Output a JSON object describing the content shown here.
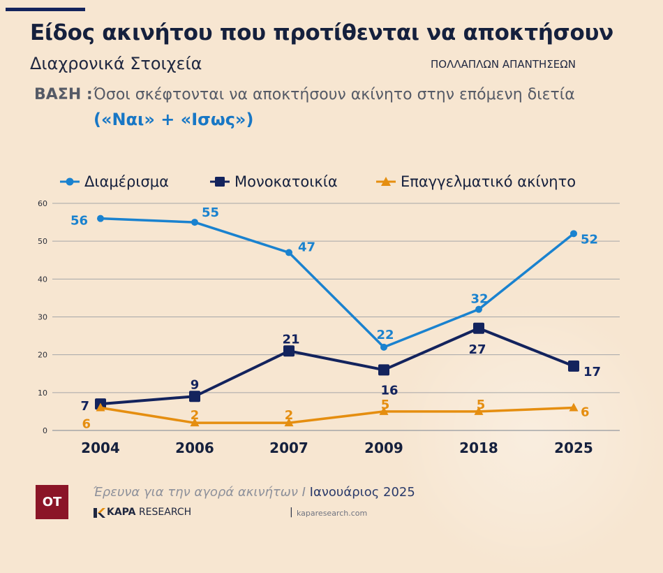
{
  "header": {
    "title": "Είδος ακινήτου που προτίθενται να αποκτήσουν",
    "subtitle": "Διαχρονικά Στοιχεία",
    "note": "ΠΟΛΛΑΠΛΩΝ ΑΠΑΝΤΗΣΕΩΝ",
    "base_label": "ΒΑΣΗ :",
    "base_text": "Όσοι σκέφτονται να αποκτήσουν ακίνητο στην επόμενη διετία",
    "base_extra": "(«Ναι» + «Ισως»)"
  },
  "colors": {
    "background": "#f7e6d1",
    "series1": "#1a82cf",
    "series2": "#13235d",
    "series3": "#e58e10",
    "grid": "#a5a6a8"
  },
  "chart_data": {
    "type": "line",
    "categories": [
      "2004",
      "2006",
      "2007",
      "2009",
      "2018",
      "2025"
    ],
    "ylim": [
      0,
      60
    ],
    "yticks": [
      "0",
      "10",
      "20",
      "30",
      "40",
      "50",
      "60"
    ],
    "grid": true,
    "legend_position": "top",
    "series": [
      {
        "name": "Διαμέρισμα",
        "marker": "circle",
        "values": [
          56,
          55,
          47,
          22,
          32,
          52
        ],
        "labels": [
          "56",
          "55",
          "47",
          "22",
          "32",
          "52"
        ]
      },
      {
        "name": "Μονοκατοικία",
        "marker": "square",
        "values": [
          7,
          9,
          21,
          16,
          27,
          17
        ],
        "labels": [
          "7",
          "9",
          "21",
          "16",
          "27",
          "17"
        ]
      },
      {
        "name": "Επαγγελματικό ακίνητο",
        "marker": "triangle",
        "values": [
          6,
          2,
          2,
          5,
          5,
          6
        ],
        "labels": [
          "6",
          "2",
          "2",
          "5",
          "5",
          "6"
        ]
      }
    ]
  },
  "footer": {
    "logo": "OT",
    "source": "Έρευνα για την αγορά ακινήτων I",
    "date": "Ιανουάριος 2025",
    "brand_bold": "KAPA",
    "brand_rest": " RESEARCH",
    "brand_sep": "|",
    "brand_url": "kaparesearch.com"
  }
}
